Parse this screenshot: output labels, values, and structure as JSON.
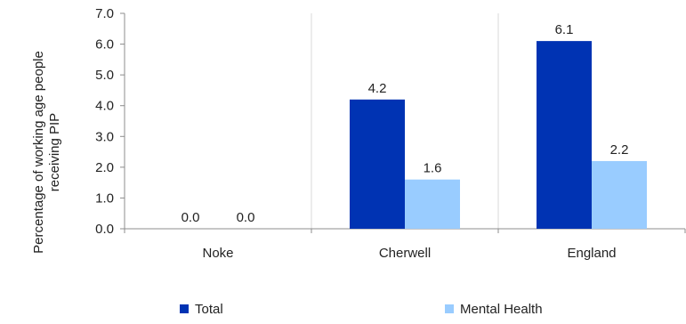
{
  "chart_data": {
    "type": "bar",
    "categories": [
      "Noke",
      "Cherwell",
      "England"
    ],
    "series": [
      {
        "name": "Total",
        "values": [
          0.0,
          4.2,
          6.1
        ],
        "labels": [
          "0.0",
          "4.2",
          "6.1"
        ],
        "color": "#0033b3"
      },
      {
        "name": "Mental Health",
        "values": [
          0.0,
          1.6,
          2.2
        ],
        "labels": [
          "0.0",
          "1.6",
          "2.2"
        ],
        "color": "#99ccff"
      }
    ],
    "ylabel_lines": [
      "Percentage of working age people",
      "receiving PIP"
    ],
    "ylim": [
      0,
      7
    ],
    "yticks": [
      "0.0",
      "1.0",
      "2.0",
      "3.0",
      "4.0",
      "5.0",
      "6.0",
      "7.0"
    ],
    "grid": "vertical separators between categories",
    "legend_position": "bottom"
  }
}
